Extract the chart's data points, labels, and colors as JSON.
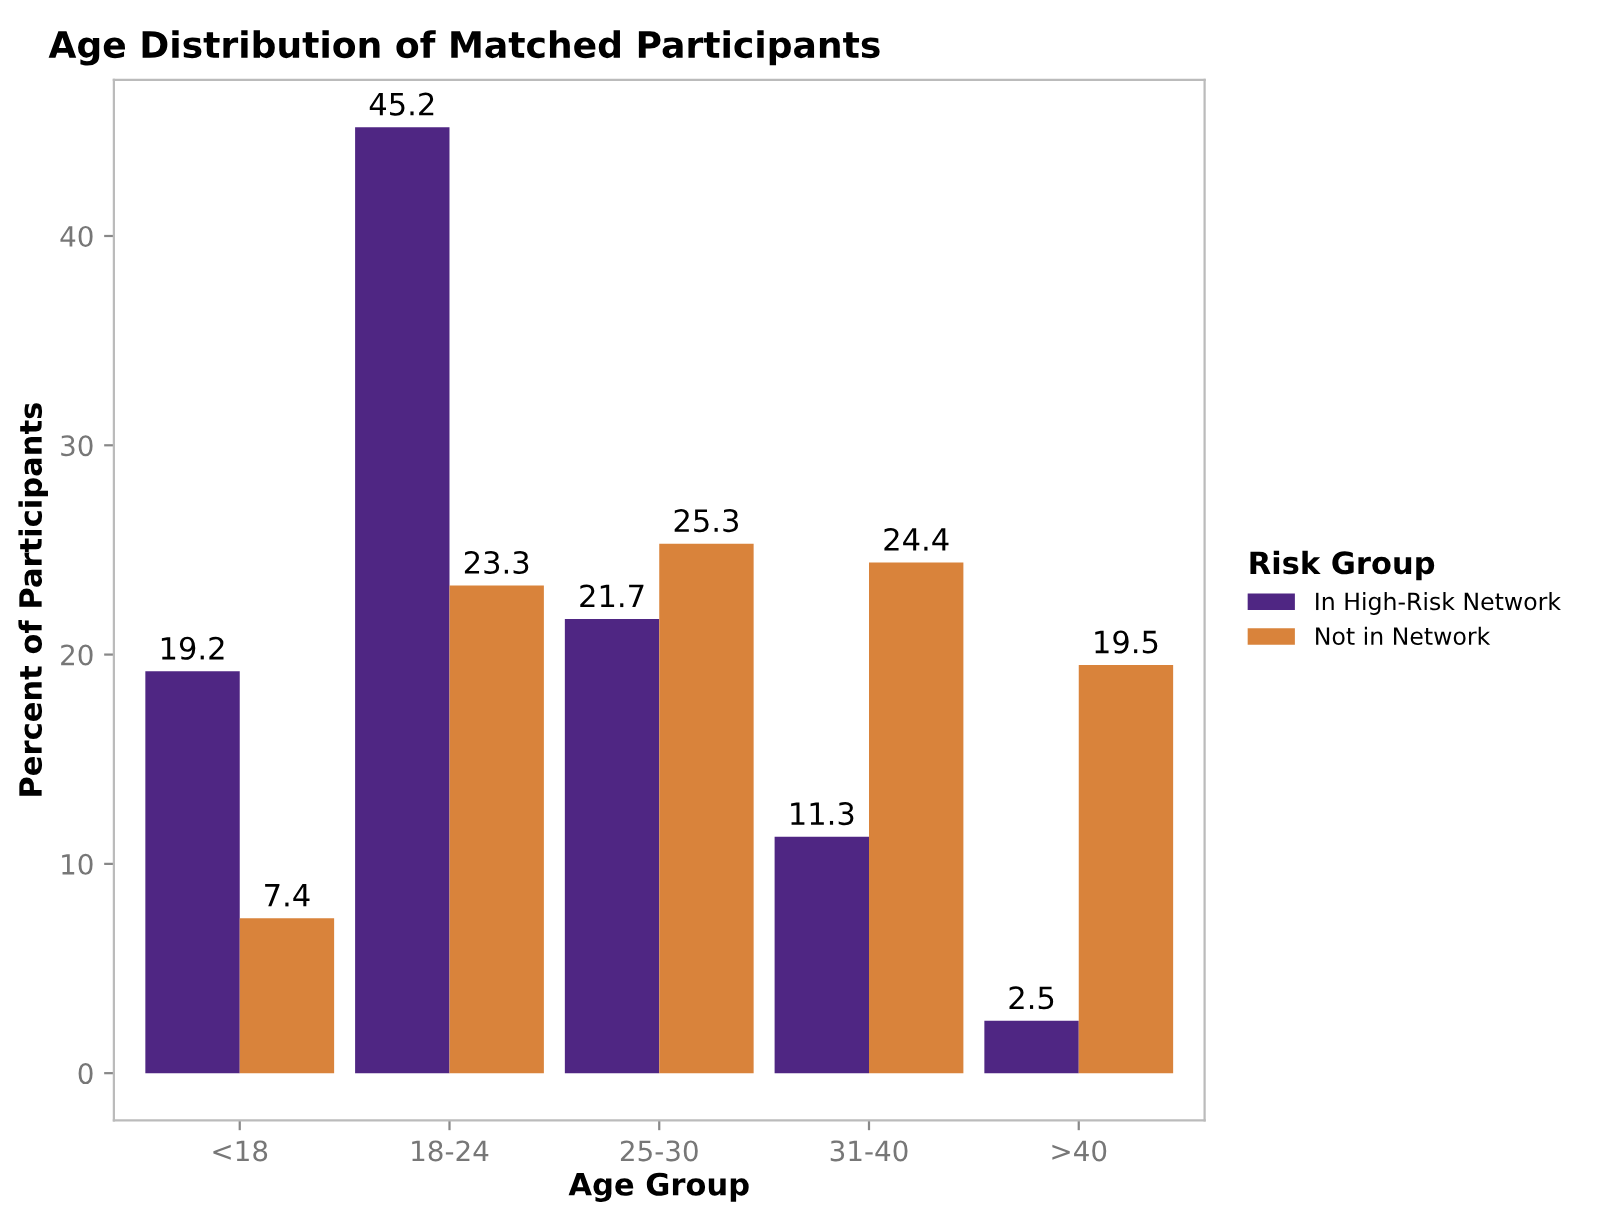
{
  "chart_data": {
    "type": "bar",
    "title": "Age Distribution of Matched Participants",
    "xlabel": "Age Group",
    "ylabel": "Percent of Participants",
    "legend_title": "Risk Group",
    "categories": [
      "<18",
      "18-24",
      "25-30",
      "31-40",
      ">40"
    ],
    "series": [
      {
        "name": "In High-Risk Network",
        "color": "#4f2683",
        "values": [
          19.2,
          45.2,
          21.7,
          11.3,
          2.5
        ]
      },
      {
        "name": "Not in Network",
        "color": "#d9833b",
        "values": [
          7.4,
          23.3,
          25.3,
          24.4,
          19.5
        ]
      }
    ],
    "ylim": [
      -2.26,
      47.46
    ],
    "yticks": [
      0,
      10,
      20,
      30,
      40
    ],
    "grid": false,
    "legend": "right",
    "data_labels": true
  }
}
